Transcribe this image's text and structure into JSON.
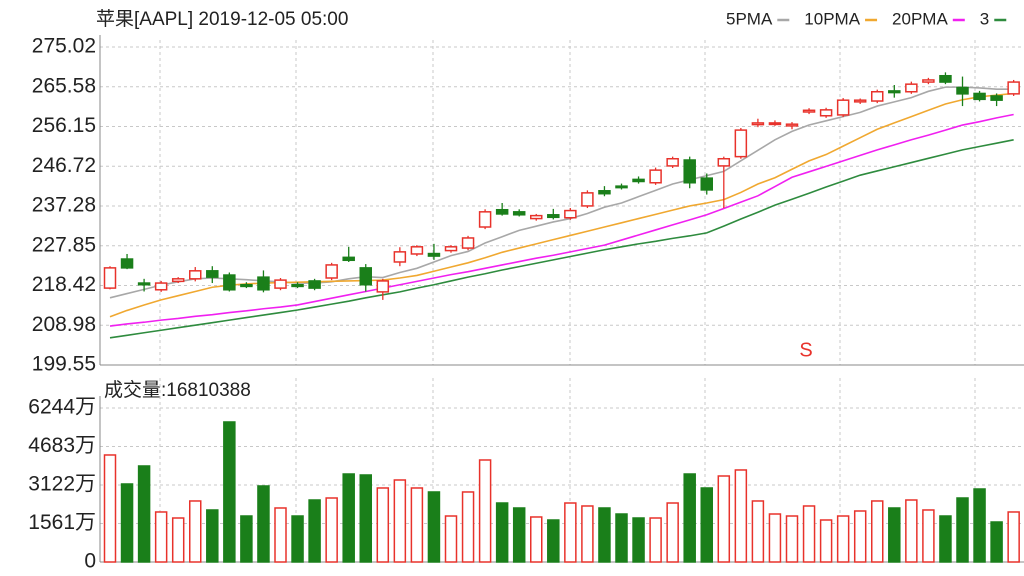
{
  "chart_data": [
    {
      "type": "candlestick",
      "title": "苹果[AAPL] 2019-12-05 05:00",
      "open": [
        217.8,
        224.7,
        219.0,
        217.4,
        219.4,
        220.0,
        221.9,
        220.9,
        218.6,
        220.4,
        217.8,
        218.6,
        219.5,
        220.2,
        225.1,
        222.6,
        216.9,
        224.0,
        225.9,
        226.0,
        226.7,
        227.3,
        232.3,
        236.4,
        235.9,
        234.3,
        235.2,
        234.5,
        237.3,
        240.9,
        242.0,
        243.6,
        242.8,
        246.8,
        248.2,
        243.9,
        246.8,
        249.0,
        256.6,
        256.8,
        256.3,
        259.6,
        258.7,
        258.9,
        262.0,
        262.2,
        264.6,
        264.4,
        266.7,
        268.2,
        265.4,
        264.0,
        263.4,
        263.9
      ],
      "high": [
        223.0,
        225.9,
        220.0,
        219.5,
        220.4,
        222.8,
        223.0,
        221.5,
        219.2,
        222.0,
        220.2,
        219.2,
        220.0,
        223.8,
        227.6,
        223.5,
        220.0,
        227.5,
        228.0,
        228.3,
        228.0,
        230.2,
        236.5,
        238.0,
        236.5,
        235.4,
        236.6,
        236.8,
        241.0,
        242.0,
        242.6,
        244.3,
        246.4,
        249.0,
        249.0,
        245.0,
        249.0,
        255.8,
        258.0,
        257.6,
        257.2,
        260.5,
        260.6,
        262.9,
        262.8,
        264.9,
        266.0,
        266.8,
        267.7,
        269.0,
        268.0,
        264.6,
        264.0,
        267.2
      ],
      "low": [
        217.5,
        222.3,
        217.0,
        216.9,
        219.0,
        219.4,
        219.0,
        217.0,
        217.8,
        216.8,
        217.3,
        217.8,
        217.3,
        219.7,
        224.0,
        217.0,
        215.0,
        223.0,
        225.4,
        224.5,
        226.2,
        226.8,
        231.8,
        235.0,
        234.8,
        233.8,
        234.1,
        234.0,
        236.8,
        239.6,
        241.2,
        242.6,
        242.3,
        246.3,
        241.5,
        240.0,
        236.8,
        248.5,
        256.0,
        256.3,
        255.5,
        259.1,
        258.2,
        258.4,
        261.5,
        261.7,
        263.0,
        263.9,
        266.2,
        266.2,
        261.0,
        262.1,
        261.0,
        263.4
      ],
      "close": [
        222.6,
        222.6,
        218.6,
        219.0,
        220.0,
        221.9,
        220.4,
        217.4,
        218.2,
        217.4,
        219.7,
        218.2,
        217.8,
        223.3,
        224.4,
        218.6,
        219.5,
        226.4,
        227.6,
        225.4,
        227.6,
        229.7,
        235.9,
        235.4,
        235.2,
        235.0,
        234.6,
        236.2,
        240.4,
        240.2,
        241.7,
        243.1,
        245.8,
        248.5,
        242.8,
        241.1,
        248.5,
        255.3,
        257.0,
        257.0,
        256.7,
        260.0,
        260.1,
        262.4,
        262.4,
        264.4,
        264.2,
        266.2,
        267.2,
        266.7,
        263.9,
        262.6,
        262.4,
        266.7
      ],
      "up_color": "#e8322b",
      "down_color": "#1a7f1a",
      "lines": [
        {
          "name": "5PMA",
          "color": "#a8a8a8",
          "values": [
            215.5,
            216.5,
            217.5,
            218.5,
            219.3,
            220,
            220.2,
            220,
            219.8,
            219.5,
            219.3,
            219,
            219,
            219.3,
            220,
            220.5,
            220.3,
            221.5,
            222.5,
            224,
            225.5,
            226.5,
            228.5,
            230,
            231.5,
            232.5,
            233.5,
            234.3,
            235.5,
            237,
            238,
            239.5,
            241,
            242.5,
            243.5,
            244.5,
            245.5,
            248,
            250.5,
            253,
            255,
            256.5,
            257.5,
            258.5,
            259.5,
            261,
            262,
            263,
            264.5,
            265.5,
            265.5,
            265.3,
            265,
            265
          ]
        },
        {
          "name": "10PMA",
          "color": "#f0a830",
          "values": [
            211,
            212.5,
            213.8,
            215,
            216,
            217,
            218,
            218.5,
            218.8,
            219,
            219.1,
            219.2,
            219.3,
            219.4,
            219.5,
            219.6,
            219.7,
            220.2,
            220.8,
            221.8,
            222.8,
            223.8,
            225,
            226.3,
            227.3,
            228.3,
            229.3,
            230.3,
            231.3,
            232.3,
            233.3,
            234.3,
            235.3,
            236.3,
            237.3,
            238,
            238.8,
            240.5,
            242.5,
            244,
            246,
            248,
            249.5,
            251.5,
            253.5,
            255.5,
            257,
            258.5,
            260,
            261.5,
            262.5,
            263.2,
            263.6,
            264
          ]
        },
        {
          "name": "20PMA",
          "color": "#f020f0",
          "values": [
            208.8,
            209.3,
            209.7,
            210.2,
            210.6,
            211.1,
            211.5,
            212,
            212.4,
            212.9,
            213.3,
            213.8,
            214.6,
            215.4,
            216.2,
            217,
            217.8,
            218.6,
            219.4,
            220.2,
            221,
            221.7,
            222.5,
            223.3,
            224.1,
            224.9,
            225.6,
            226.4,
            227.2,
            228,
            229.2,
            230.4,
            231.6,
            232.8,
            234,
            235.2,
            236.7,
            238.2,
            239.7,
            241.9,
            244.1,
            245.4,
            246.7,
            248,
            249.3,
            250.6,
            251.8,
            253,
            254.1,
            255.3,
            256.5,
            257.3,
            258.2,
            259
          ]
        },
        {
          "name": "3",
          "color": "#2e8b3e",
          "values": [
            206,
            206.6,
            207.2,
            207.8,
            208.4,
            209,
            209.6,
            210.2,
            210.8,
            211.4,
            212,
            212.6,
            213.3,
            214,
            214.7,
            215.5,
            216.2,
            216.9,
            217.8,
            218.6,
            219.5,
            220.4,
            221.2,
            222.1,
            222.9,
            223.7,
            224.5,
            225.3,
            226.1,
            226.9,
            227.6,
            228.3,
            228.9,
            229.6,
            230.2,
            230.9,
            232.5,
            234.2,
            235.8,
            237.5,
            238.9,
            240.3,
            241.8,
            243.2,
            244.6,
            245.6,
            246.6,
            247.6,
            248.6,
            249.6,
            250.6,
            251.4,
            252.2,
            253
          ]
        }
      ],
      "annotation": "S",
      "ylim": [
        199.55,
        275.02
      ],
      "yticks": [
        275.02,
        265.58,
        256.15,
        246.72,
        237.28,
        227.85,
        218.42,
        208.98,
        199.55
      ],
      "grid": true
    },
    {
      "type": "bar",
      "title": "成交量:16810388",
      "values": [
        4339,
        3163,
        3893,
        2028,
        1784,
        2474,
        2109,
        5677,
        1865,
        3082,
        2190,
        1865,
        2514,
        2595,
        3568,
        3528,
        3001,
        3325,
        3001,
        2839,
        1865,
        2839,
        4136,
        2392,
        2190,
        1825,
        1703,
        2392,
        2271,
        2190,
        1946,
        1784,
        1784,
        2392,
        3568,
        3001,
        3487,
        3731,
        2474,
        1946,
        1865,
        2271,
        1703,
        1865,
        2068,
        2474,
        2190,
        2514,
        2109,
        1865,
        2595,
        2960,
        1622,
        2028
      ],
      "ylim": [
        0,
        6244
      ],
      "yticks": [
        {
          "value": 6244,
          "label": "6244万"
        },
        {
          "value": 4683,
          "label": "4683万"
        },
        {
          "value": 3122,
          "label": "3122万"
        },
        {
          "value": 1561,
          "label": "1561万"
        },
        0
      ],
      "grid": true
    }
  ]
}
